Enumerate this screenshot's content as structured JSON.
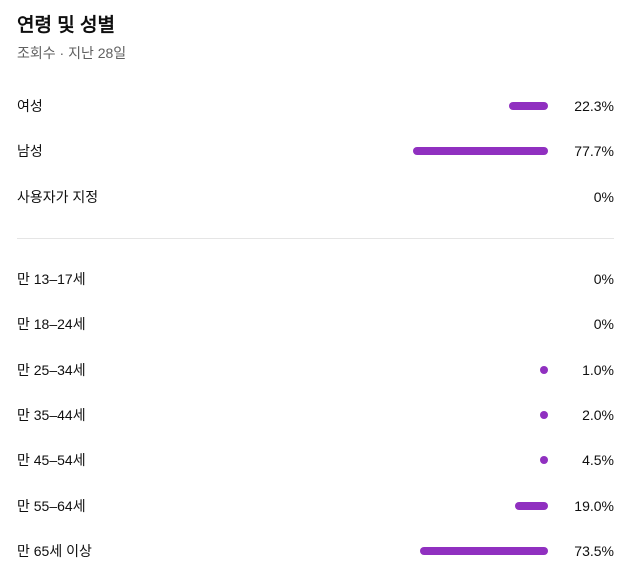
{
  "card": {
    "title": "연령 및 성별",
    "subtitle": "조회수 · 지난 28일"
  },
  "bar_color": "#9030c0",
  "gender": [
    {
      "label": "여성",
      "percent_text": "22.3%",
      "value": 22.3
    },
    {
      "label": "남성",
      "percent_text": "77.7%",
      "value": 77.7
    },
    {
      "label": "사용자가 지정",
      "percent_text": "0%",
      "value": 0
    }
  ],
  "age": [
    {
      "label": "만 13–17세",
      "percent_text": "0%",
      "value": 0
    },
    {
      "label": "만 18–24세",
      "percent_text": "0%",
      "value": 0
    },
    {
      "label": "만 25–34세",
      "percent_text": "1.0%",
      "value": 1.0
    },
    {
      "label": "만 35–44세",
      "percent_text": "2.0%",
      "value": 2.0
    },
    {
      "label": "만 45–54세",
      "percent_text": "4.5%",
      "value": 4.5
    },
    {
      "label": "만 55–64세",
      "percent_text": "19.0%",
      "value": 19.0
    },
    {
      "label": "만 65세 이상",
      "percent_text": "73.5%",
      "value": 73.5
    }
  ]
}
